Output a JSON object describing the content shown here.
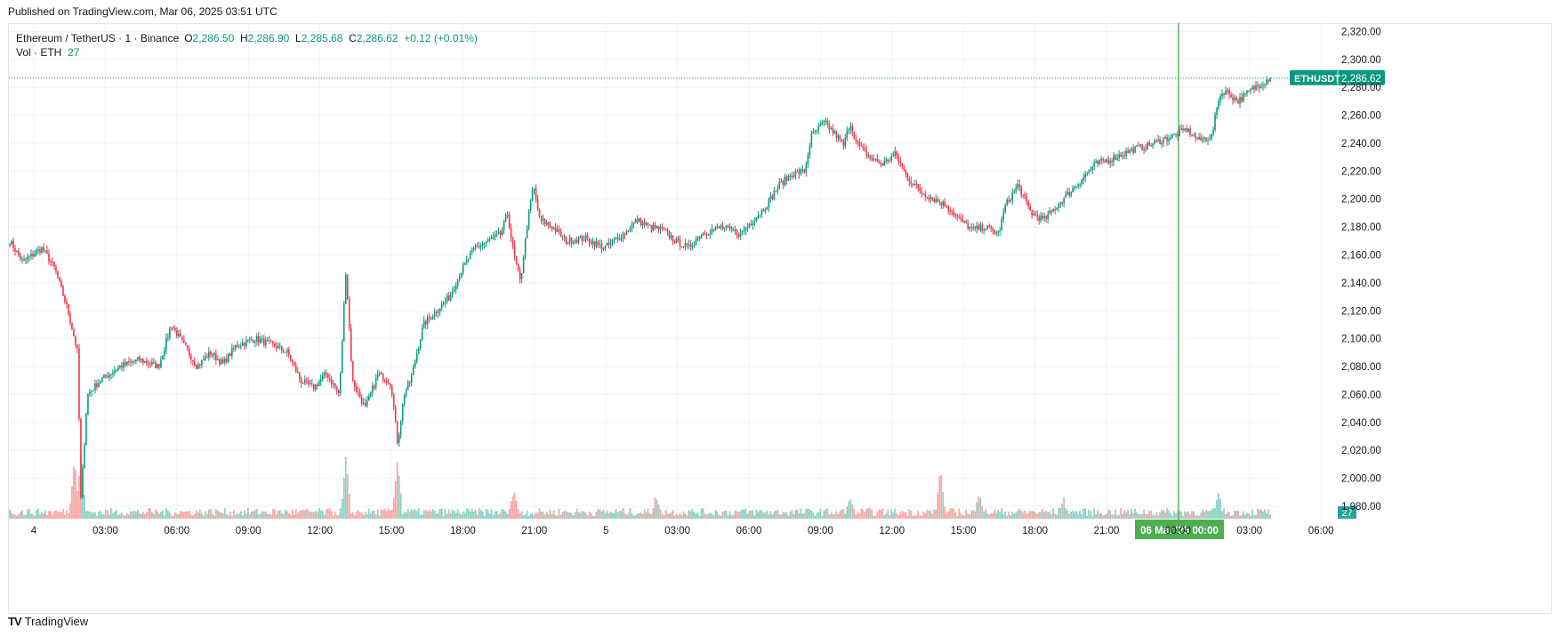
{
  "published": "Published on TradingView.com, Mar 06, 2025 03:51 UTC",
  "legend": {
    "symbol": "Ethereum / TetherUS · 1 · Binance",
    "o_label": "O",
    "o": "2,286.50",
    "h_label": "H",
    "h": "2,286.90",
    "l_label": "L",
    "l": "2,285.68",
    "c_label": "C",
    "c": "2,286.62",
    "change": "+0.12 (+0.01%)",
    "vol_label": "Vol · ETH",
    "vol": "27"
  },
  "brand": {
    "logo": "TV",
    "name": "TradingView"
  },
  "colors": {
    "up": "#089981",
    "down": "#f23645",
    "volume_up": "#8cd3c6",
    "volume_down": "#f7a9a7",
    "grid": "#f0f3fa",
    "crosshair": "#4caf50"
  },
  "chart_data": {
    "type": "candlestick",
    "title": "Ethereum / TetherUS · 1 · Binance",
    "x_tick_labels": [
      "4",
      "03:00",
      "06:00",
      "09:00",
      "12:00",
      "15:00",
      "18:00",
      "21:00",
      "5",
      "03:00",
      "06:00",
      "09:00",
      "12:00",
      "15:00",
      "18:00",
      "21:00",
      "00:00",
      "03:00",
      "06:00"
    ],
    "y_tick_labels": [
      "2,320.00",
      "2,300.00",
      "2,280.00",
      "2,260.00",
      "2,240.00",
      "2,220.00",
      "2,200.00",
      "2,180.00",
      "2,160.00",
      "2,140.00",
      "2,120.00",
      "2,100.00",
      "2,080.00",
      "2,060.00",
      "2,040.00",
      "2,020.00",
      "2,000.00",
      "1,980.00"
    ],
    "ylim": [
      1973,
      2326
    ],
    "price_keypoints": [
      [
        0,
        2170
      ],
      [
        4,
        2155
      ],
      [
        10,
        2165
      ],
      [
        14,
        2150
      ],
      [
        18,
        2120
      ],
      [
        21,
        2090
      ],
      [
        22,
        1985
      ],
      [
        24,
        2060
      ],
      [
        28,
        2070
      ],
      [
        34,
        2080
      ],
      [
        40,
        2085
      ],
      [
        46,
        2080
      ],
      [
        50,
        2110
      ],
      [
        54,
        2095
      ],
      [
        58,
        2080
      ],
      [
        62,
        2090
      ],
      [
        66,
        2082
      ],
      [
        70,
        2095
      ],
      [
        76,
        2100
      ],
      [
        82,
        2095
      ],
      [
        86,
        2090
      ],
      [
        90,
        2070
      ],
      [
        94,
        2065
      ],
      [
        98,
        2075
      ],
      [
        102,
        2060
      ],
      [
        104,
        2150
      ],
      [
        106,
        2070
      ],
      [
        110,
        2050
      ],
      [
        114,
        2075
      ],
      [
        118,
        2068
      ],
      [
        120,
        2025
      ],
      [
        122,
        2060
      ],
      [
        124,
        2070
      ],
      [
        128,
        2110
      ],
      [
        132,
        2120
      ],
      [
        136,
        2130
      ],
      [
        140,
        2150
      ],
      [
        144,
        2165
      ],
      [
        148,
        2170
      ],
      [
        152,
        2175
      ],
      [
        154,
        2190
      ],
      [
        156,
        2160
      ],
      [
        158,
        2140
      ],
      [
        160,
        2180
      ],
      [
        162,
        2210
      ],
      [
        164,
        2185
      ],
      [
        168,
        2180
      ],
      [
        172,
        2170
      ],
      [
        178,
        2172
      ],
      [
        184,
        2165
      ],
      [
        190,
        2175
      ],
      [
        194,
        2185
      ],
      [
        198,
        2180
      ],
      [
        202,
        2178
      ],
      [
        206,
        2170
      ],
      [
        210,
        2165
      ],
      [
        214,
        2175
      ],
      [
        220,
        2180
      ],
      [
        226,
        2175
      ],
      [
        230,
        2185
      ],
      [
        234,
        2195
      ],
      [
        238,
        2210
      ],
      [
        242,
        2218
      ],
      [
        246,
        2220
      ],
      [
        248,
        2245
      ],
      [
        252,
        2255
      ],
      [
        256,
        2245
      ],
      [
        258,
        2238
      ],
      [
        260,
        2255
      ],
      [
        262,
        2240
      ],
      [
        266,
        2230
      ],
      [
        270,
        2225
      ],
      [
        274,
        2232
      ],
      [
        278,
        2215
      ],
      [
        282,
        2205
      ],
      [
        286,
        2200
      ],
      [
        290,
        2195
      ],
      [
        294,
        2185
      ],
      [
        298,
        2178
      ],
      [
        302,
        2180
      ],
      [
        306,
        2175
      ],
      [
        308,
        2195
      ],
      [
        312,
        2210
      ],
      [
        316,
        2190
      ],
      [
        320,
        2185
      ],
      [
        324,
        2195
      ],
      [
        328,
        2205
      ],
      [
        332,
        2215
      ],
      [
        336,
        2225
      ],
      [
        340,
        2228
      ],
      [
        344,
        2232
      ],
      [
        348,
        2236
      ],
      [
        352,
        2238
      ],
      [
        356,
        2242
      ],
      [
        360,
        2245
      ],
      [
        364,
        2250
      ],
      [
        368,
        2242
      ],
      [
        372,
        2245
      ],
      [
        374,
        2272
      ],
      [
        376,
        2278
      ],
      [
        380,
        2270
      ],
      [
        384,
        2278
      ],
      [
        388,
        2284
      ],
      [
        390,
        2287
      ]
    ],
    "volume_spikes": [
      [
        20,
        0.95
      ],
      [
        22,
        1.0
      ],
      [
        104,
        0.95
      ],
      [
        120,
        0.95
      ],
      [
        156,
        0.45
      ],
      [
        288,
        0.75
      ],
      [
        260,
        0.35
      ],
      [
        300,
        0.4
      ],
      [
        374,
        0.4
      ],
      [
        200,
        0.35
      ],
      [
        326,
        0.3
      ]
    ],
    "last_price": 2286.62,
    "last_price_label": "2,286.62",
    "ticker_tag": "ETHUSDT",
    "crosshair_label": "06 Mar '25   00:00",
    "volume_tag": "27"
  }
}
